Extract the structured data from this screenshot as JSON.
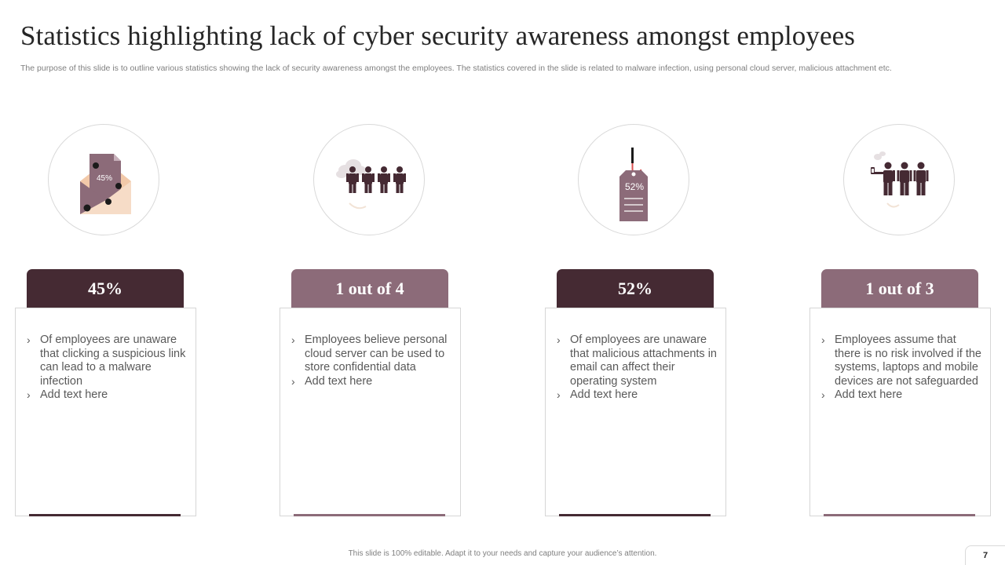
{
  "slide": {
    "title": "Statistics highlighting lack of cyber security awareness amongst employees",
    "subtitle": "The purpose of this slide is to outline various statistics showing the lack of security awareness amongst the employees. The statistics covered in the slide is related to malware infection, using personal cloud server, malicious attachment etc.",
    "footer": "This slide is 100% editable. Adapt it to your needs and capture your audience’s attention.",
    "page_number": "7"
  },
  "colors": {
    "dark": "#452a33",
    "light": "#8c6b79",
    "accent": "#f2c9a9"
  },
  "stats": [
    {
      "icon": "malware-envelope-icon",
      "icon_label": "45%",
      "value": "45%",
      "bullets": [
        "Of employees are unaware that clicking a suspicious link can lead to a malware infection",
        "Add text here"
      ]
    },
    {
      "icon": "cloud-employees-icon",
      "icon_label": "",
      "value": "1 out of 4",
      "bullets": [
        "Employees believe personal cloud server can be used to store confidential data",
        "Add text here"
      ]
    },
    {
      "icon": "phishing-tag-icon",
      "icon_label": "52%",
      "value": "52%",
      "bullets": [
        "Of employees are unaware that malicious attachments in email can affect their operating system",
        "Add text here"
      ]
    },
    {
      "icon": "mobile-employees-icon",
      "icon_label": "",
      "value": "1 out of 3",
      "bullets": [
        "Employees assume that there is no risk involved if the systems, laptops and mobile devices are not safeguarded",
        "Add text here"
      ]
    }
  ]
}
